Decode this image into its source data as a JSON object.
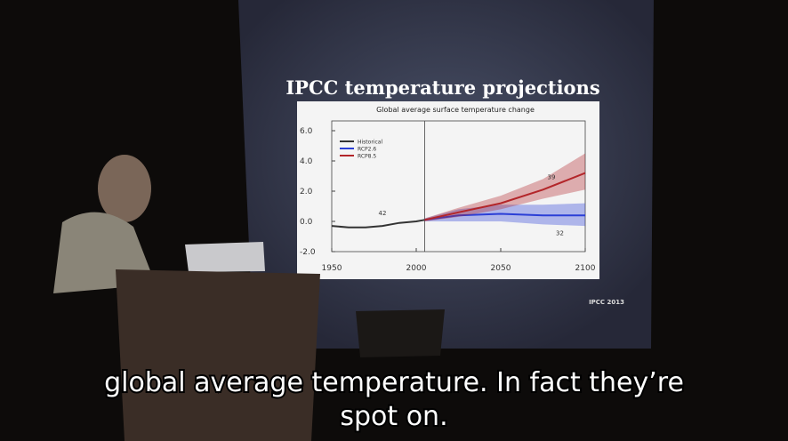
{
  "slide": {
    "title": "IPCC temperature projections",
    "credit": "IPCC 2013",
    "chart": {
      "type": "line",
      "title": "Global average surface temperature change",
      "xlim": [
        1950,
        2100
      ],
      "xticks": [
        1950,
        2000,
        2050,
        2100
      ],
      "ylim": [
        -2,
        6
      ],
      "yticks": [
        {
          "value": 6,
          "label": "6.0"
        },
        {
          "value": 4,
          "label": "4.0"
        },
        {
          "value": 2,
          "label": "2.0"
        },
        {
          "value": 0,
          "label": "0.0"
        },
        {
          "value": -2,
          "label": "-2.0"
        }
      ],
      "annotations": [
        "42",
        "39",
        "32"
      ],
      "series": [
        {
          "name": "Historical",
          "color": "#333333",
          "x": [
            1950,
            1960,
            1970,
            1980,
            1990,
            2000,
            2005
          ],
          "values": [
            -0.3,
            -0.4,
            -0.4,
            -0.3,
            -0.1,
            0.0,
            0.1
          ]
        },
        {
          "name": "RCP2.6",
          "color": "#2b3fd6",
          "x": [
            2005,
            2025,
            2050,
            2075,
            2100
          ],
          "values": [
            0.1,
            0.4,
            0.5,
            0.4,
            0.4
          ],
          "low": [
            0.0,
            0.0,
            0.0,
            -0.2,
            -0.3
          ],
          "high": [
            0.2,
            0.8,
            1.1,
            1.1,
            1.2
          ]
        },
        {
          "name": "RCP8.5",
          "color": "#b3262a",
          "x": [
            2005,
            2025,
            2050,
            2075,
            2100
          ],
          "values": [
            0.1,
            0.6,
            1.2,
            2.1,
            3.2
          ],
          "low": [
            0.0,
            0.3,
            0.8,
            1.5,
            2.1
          ],
          "high": [
            0.2,
            0.9,
            1.7,
            2.8,
            4.5
          ]
        }
      ]
    }
  },
  "subtitle": {
    "lines": [
      "global average temperature. In fact they’re",
      "spot on."
    ]
  }
}
